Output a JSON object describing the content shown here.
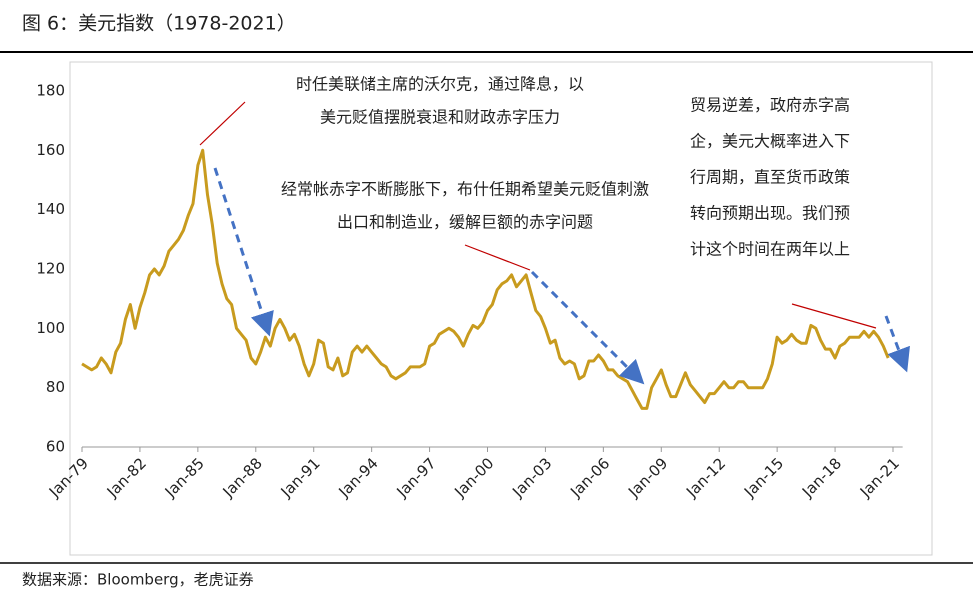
{
  "header": {
    "title": "图 6：美元指数（1978-2021）"
  },
  "chart_data": {
    "type": "line",
    "annotations": [
      [
        "时任美联储主席的沃尔克，通过降息，以",
        "美元贬值摆脱衰退和财政赤字压力"
      ],
      [
        "经常帐赤字不断膨胀下，布什任期希望美元贬值刺激",
        "出口和制造业，缓解巨额的赤字问题"
      ],
      [
        "贸易逆差，政府赤字高",
        "企，美元大概率进入下",
        "行周期，直至货币政策",
        "转向预期出现。我们预",
        "计这个时间在两年以上"
      ]
    ],
    "x": [
      1979,
      1979.25,
      1979.5,
      1979.75,
      1980,
      1980.25,
      1980.5,
      1980.75,
      1981,
      1981.25,
      1981.5,
      1981.75,
      1982,
      1982.25,
      1982.5,
      1982.75,
      1983,
      1983.25,
      1983.5,
      1983.75,
      1984,
      1984.25,
      1984.5,
      1984.75,
      1985,
      1985.25,
      1985.5,
      1985.75,
      1986,
      1986.25,
      1986.5,
      1986.75,
      1987,
      1987.25,
      1987.5,
      1987.75,
      1988,
      1988.25,
      1988.5,
      1988.75,
      1989,
      1989.25,
      1989.5,
      1989.75,
      1990,
      1990.25,
      1990.5,
      1990.75,
      1991,
      1991.25,
      1991.5,
      1991.75,
      1992,
      1992.25,
      1992.5,
      1992.75,
      1993,
      1993.25,
      1993.5,
      1993.75,
      1994,
      1994.25,
      1994.5,
      1994.75,
      1995,
      1995.25,
      1995.5,
      1995.75,
      1996,
      1996.25,
      1996.5,
      1996.75,
      1997,
      1997.25,
      1997.5,
      1997.75,
      1998,
      1998.25,
      1998.5,
      1998.75,
      1999,
      1999.25,
      1999.5,
      1999.75,
      2000,
      2000.25,
      2000.5,
      2000.75,
      2001,
      2001.25,
      2001.5,
      2001.75,
      2002,
      2002.25,
      2002.5,
      2002.75,
      2003,
      2003.25,
      2003.5,
      2003.75,
      2004,
      2004.25,
      2004.5,
      2004.75,
      2005,
      2005.25,
      2005.5,
      2005.75,
      2006,
      2006.25,
      2006.5,
      2006.75,
      2007,
      2007.25,
      2007.5,
      2007.75,
      2008,
      2008.25,
      2008.5,
      2008.75,
      2009,
      2009.25,
      2009.5,
      2009.75,
      2010,
      2010.25,
      2010.5,
      2010.75,
      2011,
      2011.25,
      2011.5,
      2011.75,
      2012,
      2012.25,
      2012.5,
      2012.75,
      2013,
      2013.25,
      2013.5,
      2013.75,
      2014,
      2014.25,
      2014.5,
      2014.75,
      2015,
      2015.25,
      2015.5,
      2015.75,
      2016,
      2016.25,
      2016.5,
      2016.75,
      2017,
      2017.25,
      2017.5,
      2017.75,
      2018,
      2018.25,
      2018.5,
      2018.75,
      2019,
      2019.25,
      2019.5,
      2019.75,
      2020,
      2020.25,
      2020.5,
      2020.75
    ],
    "series": [
      {
        "color": "#c89b1e",
        "values": [
          88,
          87,
          86,
          87,
          90,
          88,
          85,
          92,
          95,
          103,
          108,
          100,
          107,
          112,
          118,
          120,
          118,
          121,
          126,
          128,
          130,
          133,
          138,
          142,
          155,
          160,
          145,
          135,
          122,
          115,
          110,
          108,
          100,
          98,
          96,
          90,
          88,
          92,
          97,
          94,
          100,
          103,
          100,
          96,
          98,
          94,
          88,
          84,
          88,
          96,
          95,
          87,
          86,
          90,
          84,
          85,
          92,
          94,
          92,
          94,
          92,
          90,
          88,
          87,
          84,
          83,
          84,
          85,
          87,
          87,
          87,
          88,
          94,
          95,
          98,
          99,
          100,
          99,
          97,
          94,
          98,
          101,
          100,
          102,
          106,
          108,
          113,
          115,
          116,
          118,
          114,
          116,
          118,
          112,
          106,
          104,
          100,
          95,
          96,
          90,
          88,
          89,
          88,
          83,
          84,
          89,
          89,
          91,
          89,
          86,
          86,
          84,
          83,
          82,
          79,
          76,
          73,
          73,
          80,
          83,
          86,
          81,
          77,
          77,
          81,
          85,
          81,
          79,
          77,
          75,
          78,
          78,
          80,
          82,
          80,
          80,
          82,
          82,
          80,
          80,
          80,
          80,
          83,
          88,
          97,
          95,
          96,
          98,
          96,
          95,
          95,
          101,
          100,
          96,
          93,
          93,
          90,
          94,
          95,
          97,
          97,
          97,
          99,
          97,
          99,
          97,
          94,
          90
        ]
      }
    ],
    "xlim": [
      1979,
      2021.5
    ],
    "ylim": [
      60,
      180
    ],
    "yticks": [
      60,
      80,
      100,
      120,
      140,
      160,
      180
    ],
    "xticks": [
      {
        "value": 1979,
        "label": "Jan-79"
      },
      {
        "value": 1982,
        "label": "Jan-82"
      },
      {
        "value": 1985,
        "label": "Jan-85"
      },
      {
        "value": 1988,
        "label": "Jan-88"
      },
      {
        "value": 1991,
        "label": "Jan-91"
      },
      {
        "value": 1994,
        "label": "Jan-94"
      },
      {
        "value": 1997,
        "label": "Jan-97"
      },
      {
        "value": 2000,
        "label": "Jan-00"
      },
      {
        "value": 2003,
        "label": "Jan-03"
      },
      {
        "value": 2006,
        "label": "Jan-06"
      },
      {
        "value": 2009,
        "label": "Jan-09"
      },
      {
        "value": 2012,
        "label": "Jan-12"
      },
      {
        "value": 2015,
        "label": "Jan-15"
      },
      {
        "value": 2018,
        "label": "Jan-18"
      },
      {
        "value": 2021,
        "label": "Jan-21"
      }
    ]
  },
  "footer": {
    "source": "数据来源：Bloomberg，老虎证券"
  }
}
